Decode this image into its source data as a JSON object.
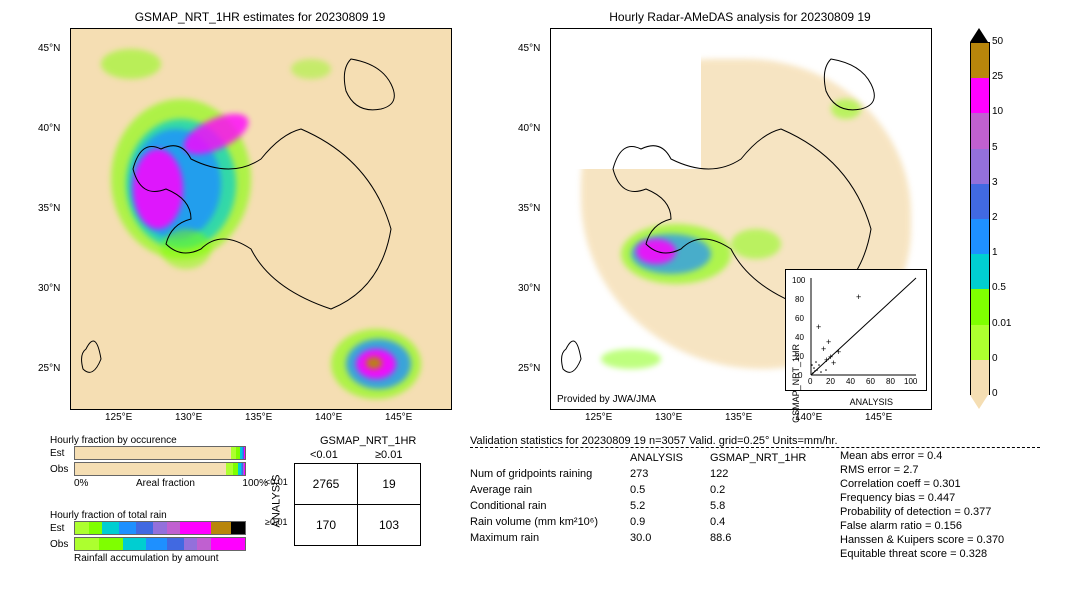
{
  "left_map": {
    "title": "GSMAP_NRT_1HR estimates for 20230809 19",
    "x_ticks": [
      "125°E",
      "130°E",
      "135°E",
      "140°E",
      "145°E"
    ],
    "y_ticks": [
      "25°N",
      "30°N",
      "35°N",
      "40°N",
      "45°N"
    ],
    "bg_color": "#f5deb3"
  },
  "right_map": {
    "title": "Hourly Radar-AMeDAS analysis for 20230809 19",
    "x_ticks": [
      "125°E",
      "130°E",
      "135°E",
      "140°E",
      "145°E"
    ],
    "y_ticks": [
      "25°N",
      "30°N",
      "35°N",
      "40°N",
      "45°N"
    ],
    "provided_by": "Provided by JWA/JMA",
    "bg_color": "#f5deb3"
  },
  "colorbar": {
    "levels": [
      "50",
      "25",
      "10",
      "5",
      "3",
      "2",
      "1",
      "0.5",
      "0.01",
      "0"
    ],
    "colors": [
      "#b8860b",
      "#ff00ff",
      "#c060d0",
      "#9370db",
      "#4169e1",
      "#1e90ff",
      "#00ced1",
      "#7fff00",
      "#adff2f",
      "#f5deb3"
    ]
  },
  "inset_scatter": {
    "xlabel": "ANALYSIS",
    "ylabel": "GSMAP_NRT_1HR",
    "xlim": [
      0,
      100
    ],
    "ylim": [
      0,
      100
    ],
    "ticks": [
      0,
      20,
      40,
      60,
      80,
      100
    ]
  },
  "hourly_frac_occ": {
    "title": "Hourly fraction by occurence",
    "rows": [
      "Est",
      "Obs"
    ],
    "xaxis_left": "0%",
    "xaxis_right": "100%",
    "xaxis_label": "Areal fraction",
    "est_segs": [
      {
        "c": "#f5deb3",
        "w": 92
      },
      {
        "c": "#adff2f",
        "w": 3
      },
      {
        "c": "#7fff00",
        "w": 2
      },
      {
        "c": "#00ced1",
        "w": 1
      },
      {
        "c": "#1e90ff",
        "w": 1
      },
      {
        "c": "#4169e1",
        "w": 0.5
      },
      {
        "c": "#ff00ff",
        "w": 0.5
      }
    ],
    "obs_segs": [
      {
        "c": "#f5deb3",
        "w": 89
      },
      {
        "c": "#adff2f",
        "w": 4
      },
      {
        "c": "#7fff00",
        "w": 3
      },
      {
        "c": "#00ced1",
        "w": 1.5
      },
      {
        "c": "#1e90ff",
        "w": 1
      },
      {
        "c": "#4169e1",
        "w": 0.5
      },
      {
        "c": "#9370db",
        "w": 0.5
      },
      {
        "c": "#ff00ff",
        "w": 0.5
      }
    ]
  },
  "hourly_frac_total": {
    "title": "Hourly fraction of total rain",
    "rows": [
      "Est",
      "Obs"
    ],
    "caption": "Rainfall accumulation by amount",
    "est_segs": [
      {
        "c": "#adff2f",
        "w": 8
      },
      {
        "c": "#7fff00",
        "w": 8
      },
      {
        "c": "#00ced1",
        "w": 10
      },
      {
        "c": "#1e90ff",
        "w": 10
      },
      {
        "c": "#4169e1",
        "w": 10
      },
      {
        "c": "#9370db",
        "w": 8
      },
      {
        "c": "#c060d0",
        "w": 8
      },
      {
        "c": "#ff00ff",
        "w": 18
      },
      {
        "c": "#b8860b",
        "w": 12
      },
      {
        "c": "#000",
        "w": 8
      }
    ],
    "obs_segs": [
      {
        "c": "#adff2f",
        "w": 14
      },
      {
        "c": "#7fff00",
        "w": 14
      },
      {
        "c": "#00ced1",
        "w": 14
      },
      {
        "c": "#1e90ff",
        "w": 12
      },
      {
        "c": "#4169e1",
        "w": 10
      },
      {
        "c": "#9370db",
        "w": 8
      },
      {
        "c": "#c060d0",
        "w": 8
      },
      {
        "c": "#ff00ff",
        "w": 20
      }
    ]
  },
  "contingency": {
    "title": "GSMAP_NRT_1HR",
    "col_labels": [
      "<0.01",
      "≥0.01"
    ],
    "row_axis": "ANALYSIS",
    "row_labels": [
      "<0.01",
      "≥0.01"
    ],
    "cells": [
      [
        "2765",
        "19"
      ],
      [
        "170",
        "103"
      ]
    ]
  },
  "validation": {
    "title": "Validation statistics for 20230809 19  n=3057 Valid. grid=0.25° Units=mm/hr.",
    "col_headers": [
      "ANALYSIS",
      "GSMAP_NRT_1HR"
    ],
    "rows": [
      {
        "label": "Num of gridpoints raining",
        "a": "273",
        "g": "122"
      },
      {
        "label": "Average rain",
        "a": "0.5",
        "g": "0.2"
      },
      {
        "label": "Conditional rain",
        "a": "5.2",
        "g": "5.8"
      },
      {
        "label": "Rain volume (mm km²10⁶)",
        "a": "0.9",
        "g": "0.4"
      },
      {
        "label": "Maximum rain",
        "a": "30.0",
        "g": "88.6"
      }
    ],
    "stats": [
      "Mean abs error =   0.4",
      "RMS error =   2.7",
      "Correlation coeff =  0.301",
      "Frequency bias =  0.447",
      "Probability of detection =  0.377",
      "False alarm ratio =  0.156",
      "Hanssen & Kuipers score =  0.370",
      "Equitable threat score =  0.328"
    ]
  }
}
